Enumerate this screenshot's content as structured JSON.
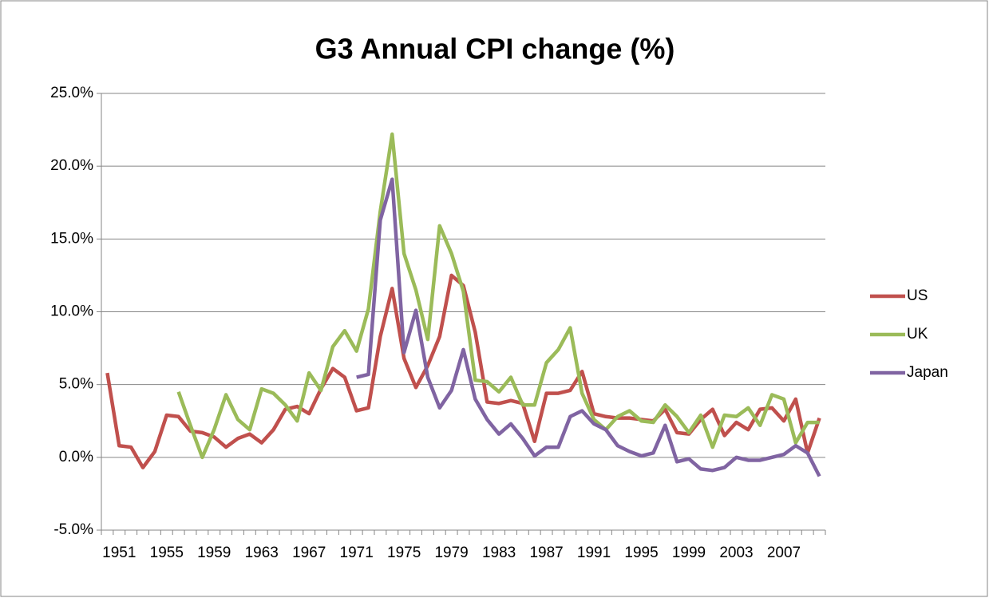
{
  "chart_data": {
    "type": "line",
    "title": "G3 Annual CPI change (%)",
    "categories": [
      null,
      "1951",
      null,
      null,
      null,
      "1955",
      null,
      null,
      null,
      "1959",
      null,
      null,
      null,
      "1963",
      null,
      null,
      null,
      "1967",
      null,
      null,
      null,
      "1971",
      null,
      null,
      null,
      "1975",
      null,
      null,
      null,
      "1979",
      null,
      null,
      null,
      "1983",
      null,
      null,
      null,
      "1987",
      null,
      null,
      null,
      "1991",
      null,
      null,
      null,
      "1995",
      null,
      null,
      null,
      "1999",
      null,
      null,
      null,
      "2003",
      null,
      null,
      null,
      "2007",
      null,
      null,
      null
    ],
    "series": [
      {
        "name": "US",
        "color": "#c0504d",
        "values": [
          5.8,
          0.8,
          0.7,
          -0.7,
          0.4,
          2.9,
          2.8,
          1.8,
          1.7,
          1.4,
          0.7,
          1.3,
          1.6,
          1.0,
          1.9,
          3.3,
          3.5,
          3.0,
          4.7,
          6.1,
          5.5,
          3.2,
          3.4,
          8.3,
          11.6,
          6.8,
          4.8,
          6.3,
          8.3,
          12.5,
          11.8,
          8.6,
          3.8,
          3.7,
          3.9,
          3.7,
          1.1,
          4.4,
          4.4,
          4.6,
          5.9,
          3.0,
          2.8,
          2.7,
          2.7,
          2.6,
          2.5,
          3.3,
          1.7,
          1.6,
          2.6,
          3.3,
          1.5,
          2.4,
          1.9,
          3.3,
          3.4,
          2.5,
          4.0,
          0.3,
          2.7
        ]
      },
      {
        "name": "UK",
        "color": "#9bbb59",
        "values": [
          null,
          null,
          null,
          null,
          null,
          null,
          4.5,
          2.2,
          0.0,
          1.9,
          4.3,
          2.6,
          1.9,
          4.7,
          4.4,
          3.6,
          2.5,
          5.8,
          4.6,
          7.6,
          8.7,
          7.3,
          10.2,
          16.9,
          22.2,
          14.0,
          11.5,
          8.1,
          15.9,
          14.0,
          11.4,
          5.3,
          5.2,
          4.5,
          5.5,
          3.6,
          3.6,
          6.5,
          7.4,
          8.9,
          4.4,
          2.6,
          1.9,
          2.8,
          3.2,
          2.5,
          2.4,
          3.6,
          2.8,
          1.7,
          2.9,
          0.7,
          2.9,
          2.8,
          3.4,
          2.2,
          4.3,
          4.0,
          1.0,
          2.4,
          2.4
        ]
      },
      {
        "name": "Japan",
        "color": "#8064a2",
        "values": [
          null,
          null,
          null,
          null,
          null,
          null,
          null,
          null,
          null,
          null,
          null,
          null,
          null,
          null,
          null,
          null,
          null,
          null,
          null,
          null,
          null,
          5.5,
          5.7,
          16.3,
          19.1,
          7.2,
          10.1,
          5.5,
          3.4,
          4.6,
          7.4,
          4.0,
          2.6,
          1.6,
          2.3,
          1.3,
          0.1,
          0.7,
          0.7,
          2.8,
          3.2,
          2.3,
          1.9,
          0.8,
          0.4,
          0.1,
          0.3,
          2.2,
          -0.3,
          -0.1,
          -0.8,
          -0.9,
          -0.7,
          0.0,
          -0.2,
          -0.2,
          0.0,
          0.2,
          0.8,
          0.3,
          -1.3
        ]
      }
    ],
    "ylim": [
      -5,
      25
    ],
    "yticks": [
      {
        "value": -5,
        "label": "-5.0%"
      },
      {
        "value": 0,
        "label": "0.0%"
      },
      {
        "value": 5,
        "label": "5.0%"
      },
      {
        "value": 10,
        "label": "10.0%"
      },
      {
        "value": 15,
        "label": "15.0%"
      },
      {
        "value": 20,
        "label": "20.0%"
      },
      {
        "value": 25,
        "label": "25.0%"
      }
    ],
    "grid": true,
    "legend": "right"
  }
}
